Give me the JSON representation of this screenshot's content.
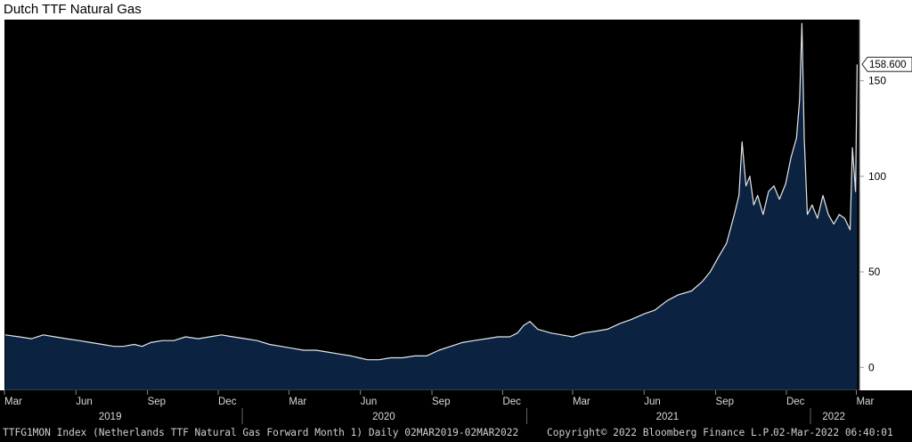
{
  "title": "Dutch TTF Natural Gas",
  "footer": {
    "description": "TTFG1MON Index (Netherlands TTF Natural Gas Forward Month 1)  Daily 02MAR2019-02MAR2022",
    "copyright": "Copyright© 2022 Bloomberg Finance L.P.",
    "timestamp": "02-Mar-2022 06:40:01"
  },
  "colors": {
    "background": "#000000",
    "area_fill": "#0b2340",
    "line": "#e6e6e6",
    "axis_text": "#d8d8d8",
    "last_value_label_bg": "#ffffff",
    "last_value_label_text": "#000000"
  },
  "chart_data": {
    "type": "area",
    "title": "Dutch TTF Natural Gas",
    "xlabel": "",
    "ylabel": "",
    "ylim": [
      -12,
      182
    ],
    "xlim": [
      "2019-03-01",
      "2022-03-05"
    ],
    "yticks": [
      0,
      50,
      100,
      150
    ],
    "y_axis_position": "right",
    "grid": false,
    "month_ticks": [
      {
        "date": "2019-03-01",
        "label": "Mar"
      },
      {
        "date": "2019-06-01",
        "label": "Jun"
      },
      {
        "date": "2019-09-01",
        "label": "Sep"
      },
      {
        "date": "2019-12-01",
        "label": "Dec"
      },
      {
        "date": "2020-03-01",
        "label": "Mar"
      },
      {
        "date": "2020-06-01",
        "label": "Jun"
      },
      {
        "date": "2020-09-01",
        "label": "Sep"
      },
      {
        "date": "2020-12-01",
        "label": "Dec"
      },
      {
        "date": "2021-03-01",
        "label": "Mar"
      },
      {
        "date": "2021-06-01",
        "label": "Jun"
      },
      {
        "date": "2021-09-01",
        "label": "Sep"
      },
      {
        "date": "2021-12-01",
        "label": "Dec"
      },
      {
        "date": "2022-03-01",
        "label": "Mar"
      }
    ],
    "year_labels": [
      {
        "label": "2019",
        "center": "2019-07-15"
      },
      {
        "label": "2020",
        "center": "2020-07-01"
      },
      {
        "label": "2021",
        "center": "2021-07-01"
      },
      {
        "label": "2022",
        "center": "2022-01-31"
      }
    ],
    "year_separators": [
      "2020-01-01",
      "2021-01-01",
      "2022-01-01"
    ],
    "last_value": 158.6,
    "last_value_label": "158.600",
    "series": [
      {
        "x": [
          "2019-03-02",
          "2019-03-20",
          "2019-04-05",
          "2019-04-20",
          "2019-05-05",
          "2019-05-20",
          "2019-06-05",
          "2019-06-20",
          "2019-07-05",
          "2019-07-20",
          "2019-08-01",
          "2019-08-15",
          "2019-08-25",
          "2019-09-05",
          "2019-09-20",
          "2019-10-05",
          "2019-10-20",
          "2019-11-05",
          "2019-11-20",
          "2019-12-05",
          "2019-12-20",
          "2020-01-05",
          "2020-01-20",
          "2020-02-05",
          "2020-02-20",
          "2020-03-05",
          "2020-03-20",
          "2020-04-05",
          "2020-04-20",
          "2020-05-05",
          "2020-05-20",
          "2020-05-30",
          "2020-06-10",
          "2020-06-25",
          "2020-07-10",
          "2020-07-25",
          "2020-08-10",
          "2020-08-25",
          "2020-09-10",
          "2020-09-25",
          "2020-10-10",
          "2020-10-25",
          "2020-11-10",
          "2020-11-25",
          "2020-12-10",
          "2020-12-20",
          "2020-12-28",
          "2021-01-05",
          "2021-01-15",
          "2021-02-01",
          "2021-02-15",
          "2021-03-01",
          "2021-03-15",
          "2021-04-01",
          "2021-04-15",
          "2021-05-01",
          "2021-05-15",
          "2021-06-01",
          "2021-06-15",
          "2021-07-01",
          "2021-07-15",
          "2021-08-01",
          "2021-08-15",
          "2021-08-25",
          "2021-09-05",
          "2021-09-15",
          "2021-09-25",
          "2021-10-01",
          "2021-10-05",
          "2021-10-10",
          "2021-10-15",
          "2021-10-20",
          "2021-10-25",
          "2021-11-01",
          "2021-11-08",
          "2021-11-15",
          "2021-11-22",
          "2021-11-30",
          "2021-12-07",
          "2021-12-14",
          "2021-12-18",
          "2021-12-21",
          "2021-12-24",
          "2021-12-28",
          "2022-01-03",
          "2022-01-10",
          "2022-01-17",
          "2022-01-24",
          "2022-01-31",
          "2022-02-07",
          "2022-02-14",
          "2022-02-21",
          "2022-02-24",
          "2022-02-28",
          "2022-03-02"
        ],
        "y": [
          17,
          16,
          15,
          17,
          16,
          15,
          14,
          13,
          12,
          11,
          11,
          12,
          11,
          13,
          14,
          14,
          16,
          15,
          16,
          17,
          16,
          15,
          14,
          12,
          11,
          10,
          9,
          9,
          8,
          7,
          6,
          5,
          4,
          4,
          5,
          5,
          6,
          6,
          9,
          11,
          13,
          14,
          15,
          16,
          16,
          18,
          22,
          24,
          20,
          18,
          17,
          16,
          18,
          19,
          20,
          23,
          25,
          28,
          30,
          35,
          38,
          40,
          45,
          50,
          58,
          65,
          80,
          90,
          118,
          95,
          100,
          85,
          90,
          80,
          92,
          95,
          88,
          96,
          110,
          120,
          140,
          180,
          120,
          80,
          85,
          78,
          90,
          80,
          75,
          80,
          78,
          72,
          115,
          92,
          158.6
        ]
      }
    ]
  }
}
